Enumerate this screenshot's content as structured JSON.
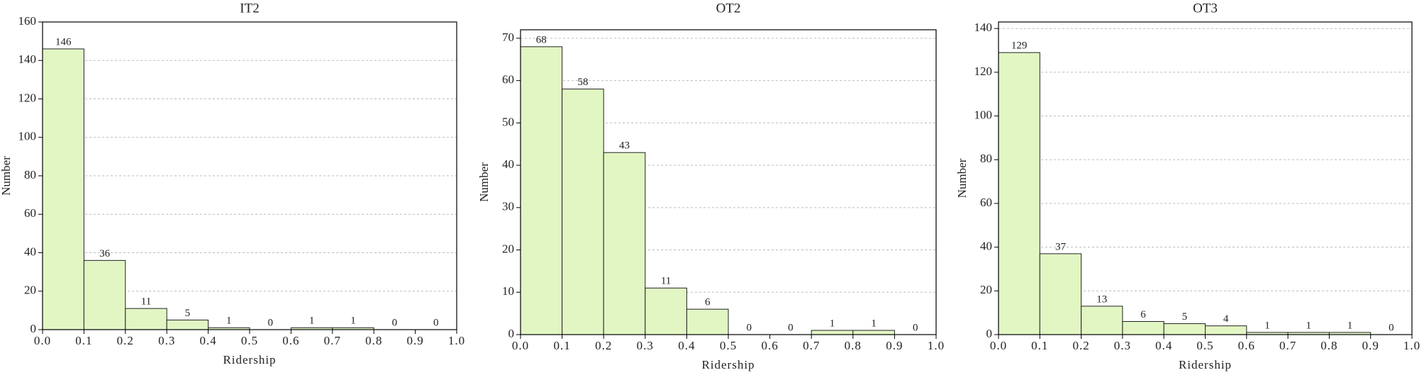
{
  "chart_data": [
    {
      "type": "histogram",
      "title": "IT2",
      "xlabel": "Ridership",
      "ylabel": "Number",
      "bins": [
        0,
        0.1,
        0.2,
        0.3,
        0.4,
        0.5,
        0.6,
        0.7,
        0.8,
        0.9,
        1
      ],
      "values": [
        146,
        36,
        11,
        5,
        1,
        0,
        1,
        1,
        0,
        0
      ],
      "color": "#e2f6c4",
      "xlim": [
        0,
        1
      ],
      "ylim": [
        0,
        160
      ],
      "xticks": [
        {
          "value": 0,
          "label": "0.0"
        },
        0.1,
        0.2,
        0.3,
        0.4,
        0.5,
        0.6,
        0.7,
        0.8,
        0.9,
        {
          "value": 1,
          "label": "1.0"
        }
      ],
      "yticks": [
        0,
        20,
        40,
        60,
        80,
        100,
        120,
        140,
        160
      ],
      "grid": true
    },
    {
      "type": "histogram",
      "title": "OT2",
      "xlabel": "Ridership",
      "ylabel": "Number",
      "bins": [
        0,
        0.1,
        0.2,
        0.3,
        0.4,
        0.5,
        0.6,
        0.7,
        0.8,
        0.9,
        1
      ],
      "values": [
        68,
        58,
        43,
        11,
        6,
        0,
        0,
        1,
        1,
        0
      ],
      "color": "#e2f6c4",
      "xlim": [
        0,
        1
      ],
      "ylim": [
        0,
        72
      ],
      "xticks": [
        {
          "value": 0,
          "label": "0.0"
        },
        0.1,
        0.2,
        0.3,
        0.4,
        0.5,
        0.6,
        0.7,
        0.8,
        0.9,
        {
          "value": 1,
          "label": "1.0"
        }
      ],
      "yticks": [
        0,
        10,
        20,
        30,
        40,
        50,
        60,
        70
      ],
      "grid": true
    },
    {
      "type": "histogram",
      "title": "OT3",
      "xlabel": "Ridership",
      "ylabel": "Number",
      "bins": [
        0,
        0.1,
        0.2,
        0.3,
        0.4,
        0.5,
        0.6,
        0.7,
        0.8,
        0.9,
        1
      ],
      "values": [
        129,
        37,
        13,
        6,
        5,
        4,
        1,
        1,
        1,
        0
      ],
      "color": "#e2f6c4",
      "xlim": [
        0,
        1
      ],
      "ylim": [
        0,
        143
      ],
      "xticks": [
        {
          "value": 0,
          "label": "0.0"
        },
        0.1,
        0.2,
        0.3,
        0.4,
        0.5,
        0.6,
        0.7,
        0.8,
        0.9,
        {
          "value": 1,
          "label": "1.0"
        }
      ],
      "yticks": [
        0,
        20,
        40,
        60,
        80,
        100,
        120,
        140
      ],
      "grid": true
    }
  ]
}
